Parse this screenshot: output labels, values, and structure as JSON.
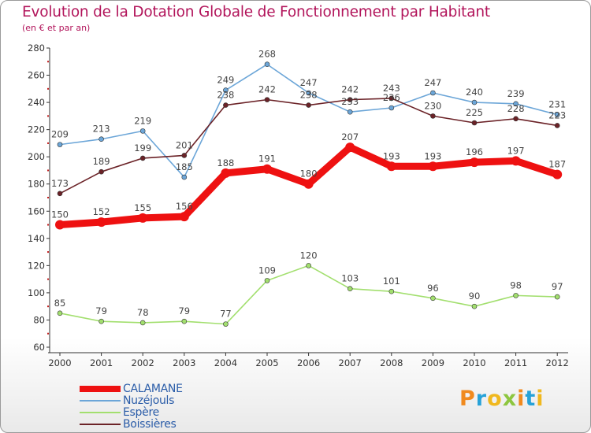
{
  "chart_data": {
    "type": "line",
    "title": "Evolution de la Dotation Globale de Fonctionnement par Habitant",
    "subtitle": "(en € et par an)",
    "xlabel": "",
    "ylabel": "",
    "categories": [
      "2000",
      "2001",
      "2002",
      "2003",
      "2004",
      "2005",
      "2006",
      "2007",
      "2008",
      "2009",
      "2010",
      "2011",
      "2012"
    ],
    "ylim": [
      60,
      280
    ],
    "yticks": [
      60,
      80,
      100,
      120,
      140,
      160,
      180,
      200,
      220,
      240,
      260,
      280
    ],
    "grid": false,
    "legend": "bottom-left",
    "series": [
      {
        "name": "CALAMANE",
        "color": "#ee1111",
        "values": [
          150,
          152,
          155,
          156,
          188,
          191,
          180,
          207,
          193,
          193,
          196,
          197,
          187
        ]
      },
      {
        "name": "Nuzéjouls",
        "color": "#6ca6d8",
        "values": [
          209,
          213,
          219,
          185,
          249,
          268,
          247,
          233,
          236,
          247,
          240,
          239,
          231
        ]
      },
      {
        "name": "Espère",
        "color": "#a2df6e",
        "values": [
          85,
          79,
          78,
          79,
          77,
          109,
          120,
          103,
          101,
          96,
          90,
          98,
          97
        ]
      },
      {
        "name": "Boissières",
        "color": "#6b2227",
        "values": [
          173,
          189,
          199,
          201,
          238,
          242,
          238,
          242,
          243,
          230,
          225,
          228,
          223
        ]
      }
    ]
  },
  "logo": {
    "text": "Proxiti"
  }
}
